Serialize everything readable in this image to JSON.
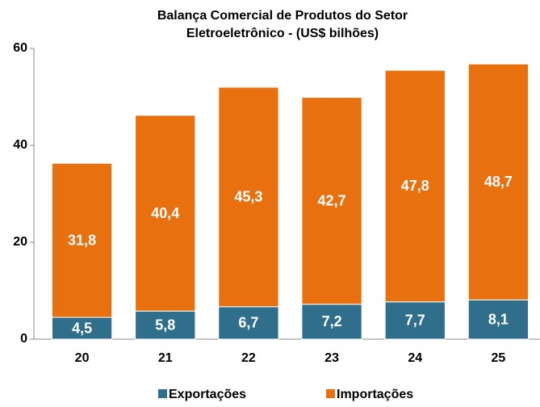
{
  "chart_data": {
    "type": "stacked_bar",
    "title": [
      "Balança Comercial de Produtos do Setor",
      "Eletroeletrônico - (US$ bilhões)"
    ],
    "categories": [
      "20",
      "21",
      "22",
      "23",
      "24",
      "25"
    ],
    "series": [
      {
        "name": "Exportações",
        "color": "#2f6f8c",
        "values": [
          4.5,
          5.8,
          6.7,
          7.2,
          7.7,
          8.1
        ],
        "value_labels": [
          "4,5",
          "5,8",
          "6,7",
          "7,2",
          "7,7",
          "8,1"
        ]
      },
      {
        "name": "Importações",
        "color": "#e8700f",
        "values": [
          31.8,
          40.4,
          45.3,
          42.7,
          47.8,
          48.7
        ],
        "value_labels": [
          "31,8",
          "40,4",
          "45,3",
          "42,7",
          "47,8",
          "48,7"
        ]
      }
    ],
    "ylim": [
      0,
      60
    ],
    "yticks": [
      0,
      20,
      40,
      60
    ],
    "legend": "bottom"
  }
}
